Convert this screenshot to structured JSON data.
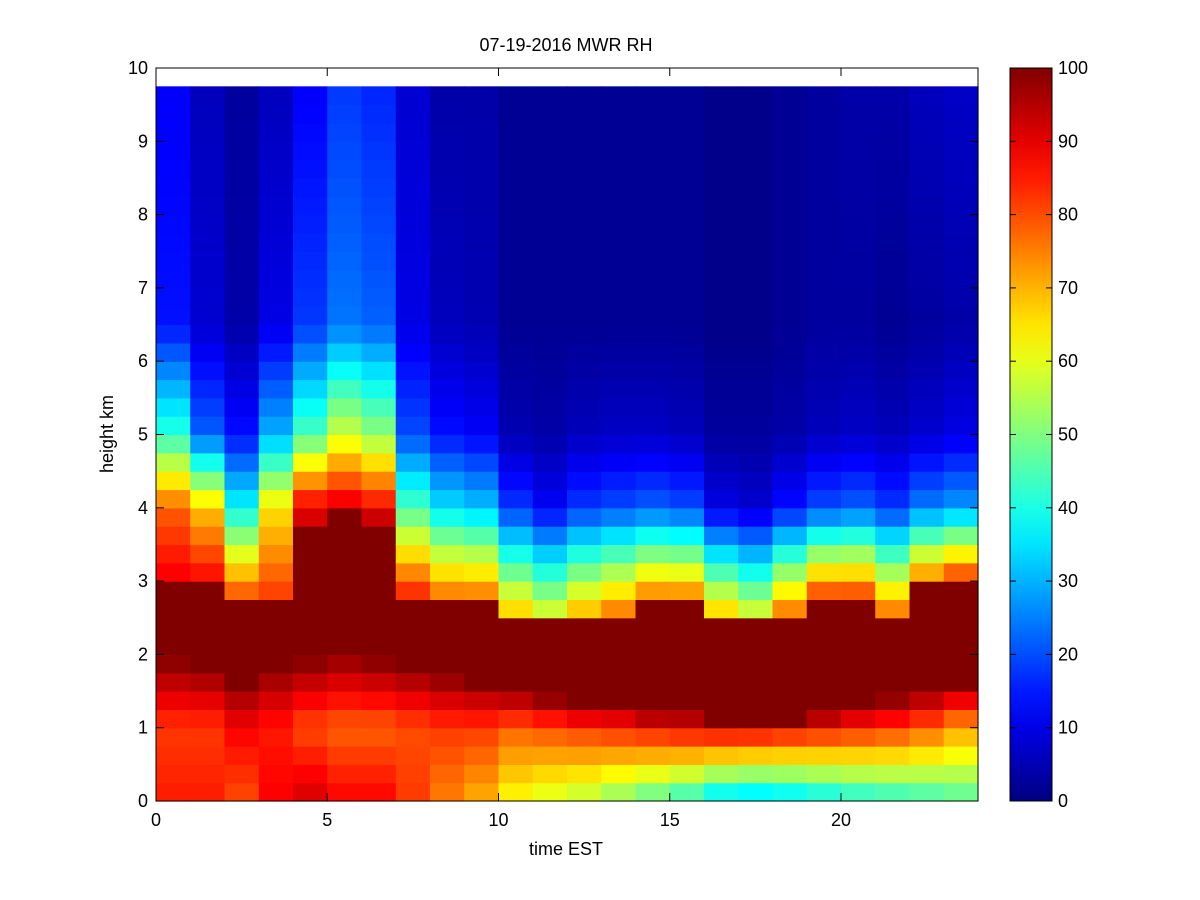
{
  "chart_data": {
    "type": "heatmap",
    "title": "07-19-2016 MWR RH",
    "xlabel": "time EST",
    "ylabel": "height km",
    "xlim": [
      0,
      24
    ],
    "ylim": [
      0,
      10
    ],
    "xticks": [
      0,
      5,
      10,
      15,
      20
    ],
    "yticks": [
      0,
      1,
      2,
      3,
      4,
      5,
      6,
      7,
      8,
      9,
      10
    ],
    "colorbar": {
      "colormap": "jet",
      "limits": [
        0,
        100
      ],
      "ticks": [
        0,
        10,
        20,
        30,
        40,
        50,
        60,
        70,
        80,
        90,
        100
      ]
    },
    "grid": false,
    "time_cells": [
      0.5,
      1.5,
      2.5,
      3.5,
      4.5,
      5.5,
      6.5,
      7.5,
      8.5,
      9.5,
      10.5,
      11.5,
      12.5,
      13.5,
      14.5,
      15.5,
      16.5,
      17.5,
      18.5,
      19.5,
      20.5,
      21.5,
      22.5,
      23.5
    ],
    "height_top_km": 9.75,
    "height_step_km": 0.25,
    "profile_params": {
      "description": "per time column: surface RH, RH at 1 km, base/top of saturated layer (km), RH just above layer, RH at 4/5/6.5 km, RH aloft",
      "columns": [
        {
          "t": 0,
          "sfc": 85,
          "low1": 82,
          "satBot": 1.9,
          "satTop": 2.9,
          "above": 90,
          "rh4": 78,
          "rh5": 42,
          "rh65": 14,
          "aloft": 12
        },
        {
          "t": 1,
          "sfc": 85,
          "low1": 82,
          "satBot": 1.8,
          "satTop": 3.0,
          "above": 88,
          "rh4": 68,
          "rh5": 22,
          "rh65": 8,
          "aloft": 6
        },
        {
          "t": 2,
          "sfc": 80,
          "low1": 88,
          "satBot": 1.6,
          "satTop": 2.8,
          "above": 80,
          "rh4": 38,
          "rh5": 14,
          "rh65": 4,
          "aloft": 3
        },
        {
          "t": 3,
          "sfc": 88,
          "low1": 85,
          "satBot": 1.8,
          "satTop": 2.8,
          "above": 82,
          "rh4": 65,
          "rh5": 30,
          "rh65": 10,
          "aloft": 6
        },
        {
          "t": 4,
          "sfc": 92,
          "low1": 80,
          "satBot": 1.9,
          "satTop": 3.8,
          "above": 92,
          "rh4": 90,
          "rh5": 45,
          "rh65": 18,
          "aloft": 12
        },
        {
          "t": 5,
          "sfc": 88,
          "low1": 78,
          "satBot": 2.0,
          "satTop": 4.0,
          "above": 95,
          "rh4": 92,
          "rh5": 58,
          "rh65": 24,
          "aloft": 18
        },
        {
          "t": 6,
          "sfc": 88,
          "low1": 78,
          "satBot": 1.9,
          "satTop": 3.8,
          "above": 95,
          "rh4": 88,
          "rh5": 52,
          "rh65": 22,
          "aloft": 16
        },
        {
          "t": 7,
          "sfc": 82,
          "low1": 80,
          "satBot": 1.8,
          "satTop": 2.8,
          "above": 85,
          "rh4": 45,
          "rh5": 20,
          "rh65": 10,
          "aloft": 8
        },
        {
          "t": 8,
          "sfc": 75,
          "low1": 82,
          "satBot": 1.7,
          "satTop": 2.7,
          "above": 80,
          "rh4": 35,
          "rh5": 14,
          "rh65": 6,
          "aloft": 4
        },
        {
          "t": 9,
          "sfc": 70,
          "low1": 82,
          "satBot": 1.6,
          "satTop": 2.7,
          "above": 80,
          "rh4": 32,
          "rh5": 12,
          "rh65": 5,
          "aloft": 4
        },
        {
          "t": 10,
          "sfc": 62,
          "low1": 78,
          "satBot": 1.5,
          "satTop": 2.5,
          "above": 70,
          "rh4": 18,
          "rh5": 5,
          "rh65": 2,
          "aloft": 2
        },
        {
          "t": 11,
          "sfc": 58,
          "low1": 80,
          "satBot": 1.4,
          "satTop": 2.4,
          "above": 65,
          "rh4": 12,
          "rh5": 4,
          "rh65": 2,
          "aloft": 2
        },
        {
          "t": 12,
          "sfc": 55,
          "low1": 82,
          "satBot": 1.3,
          "satTop": 2.5,
          "above": 72,
          "rh4": 18,
          "rh5": 6,
          "rh65": 2,
          "aloft": 2
        },
        {
          "t": 13,
          "sfc": 50,
          "low1": 84,
          "satBot": 1.3,
          "satTop": 2.6,
          "above": 75,
          "rh4": 20,
          "rh5": 7,
          "rh65": 2,
          "aloft": 2
        },
        {
          "t": 14,
          "sfc": 45,
          "low1": 86,
          "satBot": 1.2,
          "satTop": 2.7,
          "above": 80,
          "rh4": 22,
          "rh5": 7,
          "rh65": 2,
          "aloft": 2
        },
        {
          "t": 15,
          "sfc": 40,
          "low1": 88,
          "satBot": 1.2,
          "satTop": 2.7,
          "above": 80,
          "rh4": 20,
          "rh5": 6,
          "rh65": 2,
          "aloft": 2
        },
        {
          "t": 16,
          "sfc": 32,
          "low1": 90,
          "satBot": 1.1,
          "satTop": 2.5,
          "above": 70,
          "rh4": 10,
          "rh5": 3,
          "rh65": 1,
          "aloft": 1
        },
        {
          "t": 17,
          "sfc": 30,
          "low1": 90,
          "satBot": 1.1,
          "satTop": 2.4,
          "above": 65,
          "rh4": 8,
          "rh5": 3,
          "rh65": 1,
          "aloft": 1
        },
        {
          "t": 18,
          "sfc": 32,
          "low1": 88,
          "satBot": 1.1,
          "satTop": 2.6,
          "above": 75,
          "rh4": 14,
          "rh5": 4,
          "rh65": 2,
          "aloft": 2
        },
        {
          "t": 19,
          "sfc": 35,
          "low1": 86,
          "satBot": 1.2,
          "satTop": 2.8,
          "above": 82,
          "rh4": 20,
          "rh5": 6,
          "rh65": 3,
          "aloft": 3
        },
        {
          "t": 20,
          "sfc": 38,
          "low1": 84,
          "satBot": 1.3,
          "satTop": 2.8,
          "above": 82,
          "rh4": 22,
          "rh5": 7,
          "rh65": 3,
          "aloft": 4
        },
        {
          "t": 21,
          "sfc": 40,
          "low1": 82,
          "satBot": 1.4,
          "satTop": 2.6,
          "above": 75,
          "rh4": 18,
          "rh5": 6,
          "rh65": 2,
          "aloft": 4
        },
        {
          "t": 22,
          "sfc": 42,
          "low1": 78,
          "satBot": 1.5,
          "satTop": 2.9,
          "above": 82,
          "rh4": 25,
          "rh5": 8,
          "rh65": 3,
          "aloft": 6
        },
        {
          "t": 23,
          "sfc": 45,
          "low1": 72,
          "satBot": 1.6,
          "satTop": 3.0,
          "above": 85,
          "rh4": 28,
          "rh5": 10,
          "rh65": 4,
          "aloft": 7
        }
      ]
    }
  }
}
